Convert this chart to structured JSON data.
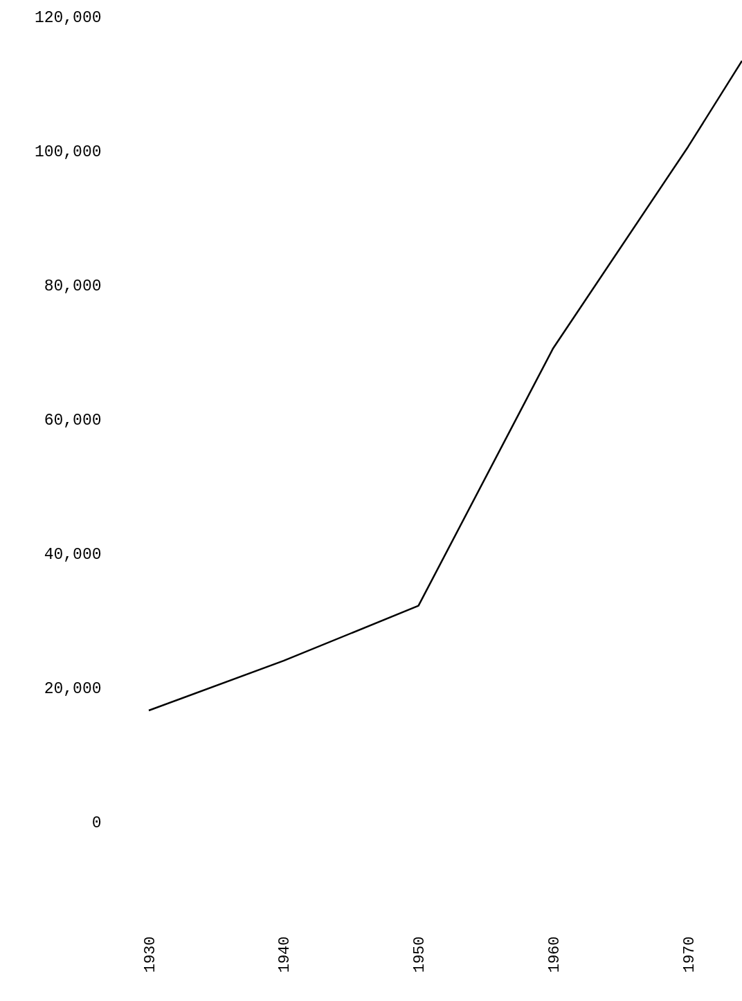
{
  "chart_data": {
    "type": "line",
    "x": [
      1930,
      1940,
      1950,
      1960,
      1970,
      1974
    ],
    "series": [
      {
        "color": "#000000",
        "values": [
          16600,
          24000,
          32200,
          70600,
          100600,
          113400
        ]
      }
    ],
    "xlim": [
      1930,
      1974
    ],
    "ylim": [
      0,
      120000
    ],
    "xticks": [
      1930,
      1940,
      1950,
      1960,
      1970
    ],
    "yticks": [
      0,
      {
        "value": 20000,
        "label": "20,000"
      },
      {
        "value": 40000,
        "label": "40,000"
      },
      {
        "value": 60000,
        "label": "60,000"
      },
      {
        "value": 80000,
        "label": "80,000"
      },
      {
        "value": 100000,
        "label": "100,000"
      },
      {
        "value": 120000,
        "label": "120,000"
      }
    ],
    "grid": false,
    "marker": "none",
    "line_style": "solid"
  }
}
